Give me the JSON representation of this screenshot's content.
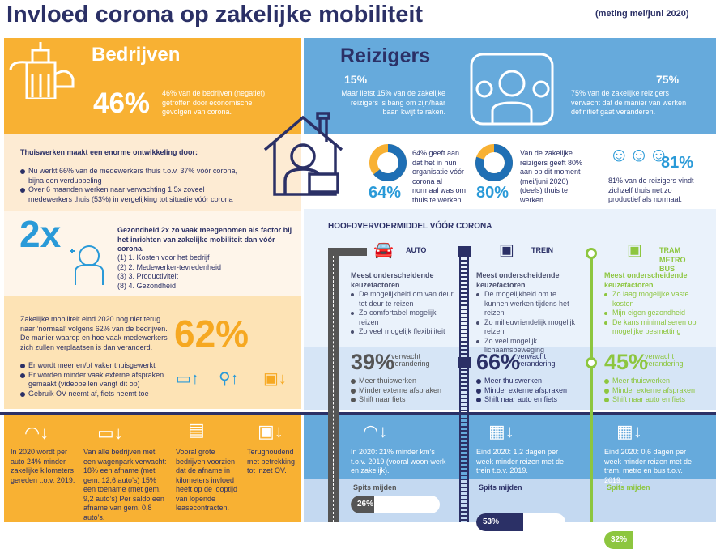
{
  "title": "Invloed corona op zakelijke mobiliteit",
  "meting": "(meting mei/juni 2020)",
  "bedrijven": {
    "heading": "Bedrijven",
    "pct": "46%",
    "text": "46% van de bedrijven (negatief) getroffen door economische gevolgen van corona.",
    "thuis_heading": "Thuiswerken maakt een enorme ontwikkeling door:",
    "thuis_items": [
      "Nu werkt 66% van de medewerkers thuis t.o.v. 37% vóór corona, bijna een verdubbeling",
      "Over 6 maanden werken naar verwachting 1,5x zoveel medewerkers thuis (53%) in vergelijking tot situatie vóór corona"
    ],
    "gezond_big": "2x",
    "gezond_heading": "Gezondheid 2x zo vaak meegenomen als factor bij het inrichten van zakelijke mobiliteit dan vóór corona.",
    "ranking": [
      "(1) 1. Kosten voor het bedrijf",
      "(2) 2. Medewerker-tevredenheid",
      "(3) 3. Productiviteit",
      "(8) 4. Gezondheid"
    ],
    "mob_text": "Zakelijke mobiliteit eind 2020 nog niet terug naar ‘normaal’ volgens 62% van de bedrijven. De manier waarop en hoe vaak medewerkers zich zullen verplaatsen is dan veranderd.",
    "mob_pct": "62%",
    "mob_items": [
      "Er wordt meer en/of vaker thuisgewerkt",
      "Er worden minder vaak externe afspraken gemaakt (videobellen vangt dit op)",
      "Gebruik OV neemt af, fiets neemt toe"
    ],
    "bottom": [
      "In 2020 wordt per auto 24% minder zakelijke kilometers gereden t.o.v. 2019.",
      "Van alle bedrijven met een wagenpark verwacht: 18% een afname (met gem. 12,6 auto’s) 15% een toename (met gem. 9,2 auto’s) Per saldo een afname van gem. 0,8 auto’s.",
      "Vooral grote bedrijven voorzien dat de afname in kilometers invloed heeft op de looptijd van lopende leasecontracten.",
      "Terughoudend met betrekking tot inzet OV."
    ]
  },
  "reizigers": {
    "heading": "Reizigers",
    "p15": "15%",
    "t15": "Maar liefst 15% van de zakelijke reizigers is bang om zijn/haar baan kwijt te raken.",
    "p75": "75%",
    "t75": "75% van de zakelijke reizigers verwacht dat de manier van werken definitief gaat veranderen.",
    "d64": "64%",
    "t64": "64% geeft aan dat het in hun organisatie vóór corona al normaal was om thuis te werken.",
    "d80": "80%",
    "t80": "Van de zakelijke reizigers geeft 80% aan op dit moment (mei/juni 2020) (deels) thuis te werken.",
    "p81": "81%",
    "t81": "81% van de reizigers vindt zichzelf thuis net zo productief als normaal."
  },
  "vervoer": {
    "heading": "HOOFDVERVOERMIDDEL VÓÓR CORONA",
    "factor_heading": "Meest onderscheidende keuzefactoren",
    "verwacht": "verwacht verandering",
    "spits": "Spits mijden",
    "modes": [
      {
        "name": "AUTO",
        "color": "#555555",
        "factors": [
          "De mogelijkheid om van deur tot deur te reizen",
          "Zo comfortabel mogelijk reizen",
          "Zo veel mogelijk flexibiliteit"
        ],
        "pct": "39%",
        "changes": [
          "Meer thuiswerken",
          "Minder externe afspraken",
          "Shift naar fiets"
        ],
        "bottom": "In 2020: 21% minder km’s t.o.v. 2019 (vooral woon-werk en zakelijk).",
        "spits": 26,
        "spits_label": "26%"
      },
      {
        "name": "TREIN",
        "color": "#2b3066",
        "factors": [
          "De mogelijkheid om te kunnen werken tijdens het reizen",
          "Zo milieuvriendelijk mogelijk reizen",
          "Zo veel mogelijk lichaamsbeweging"
        ],
        "pct": "66%",
        "changes": [
          "Meer thuiswerken",
          "Minder externe afspraken",
          "Shift naar auto en fiets"
        ],
        "bottom": "Eind 2020: 1,2 dagen per week minder reizen met de trein t.o.v. 2019.",
        "spits": 53,
        "spits_label": "53%"
      },
      {
        "name": "TRAM METRO BUS",
        "color": "#8dc63f",
        "factors": [
          "Zo laag mogelijke vaste kosten",
          "Mijn eigen gezondheid",
          "De kans minimaliseren op mogelijke besmetting"
        ],
        "pct": "45%",
        "changes": [
          "Meer thuiswerken",
          "Minder externe afspraken",
          "Shift naar auto en fiets"
        ],
        "bottom": "Eind 2020: 0,6 dagen per week minder reizen met de tram, metro en bus t.o.v. 2019.",
        "spits": 32,
        "spits_label": "32%"
      }
    ]
  }
}
